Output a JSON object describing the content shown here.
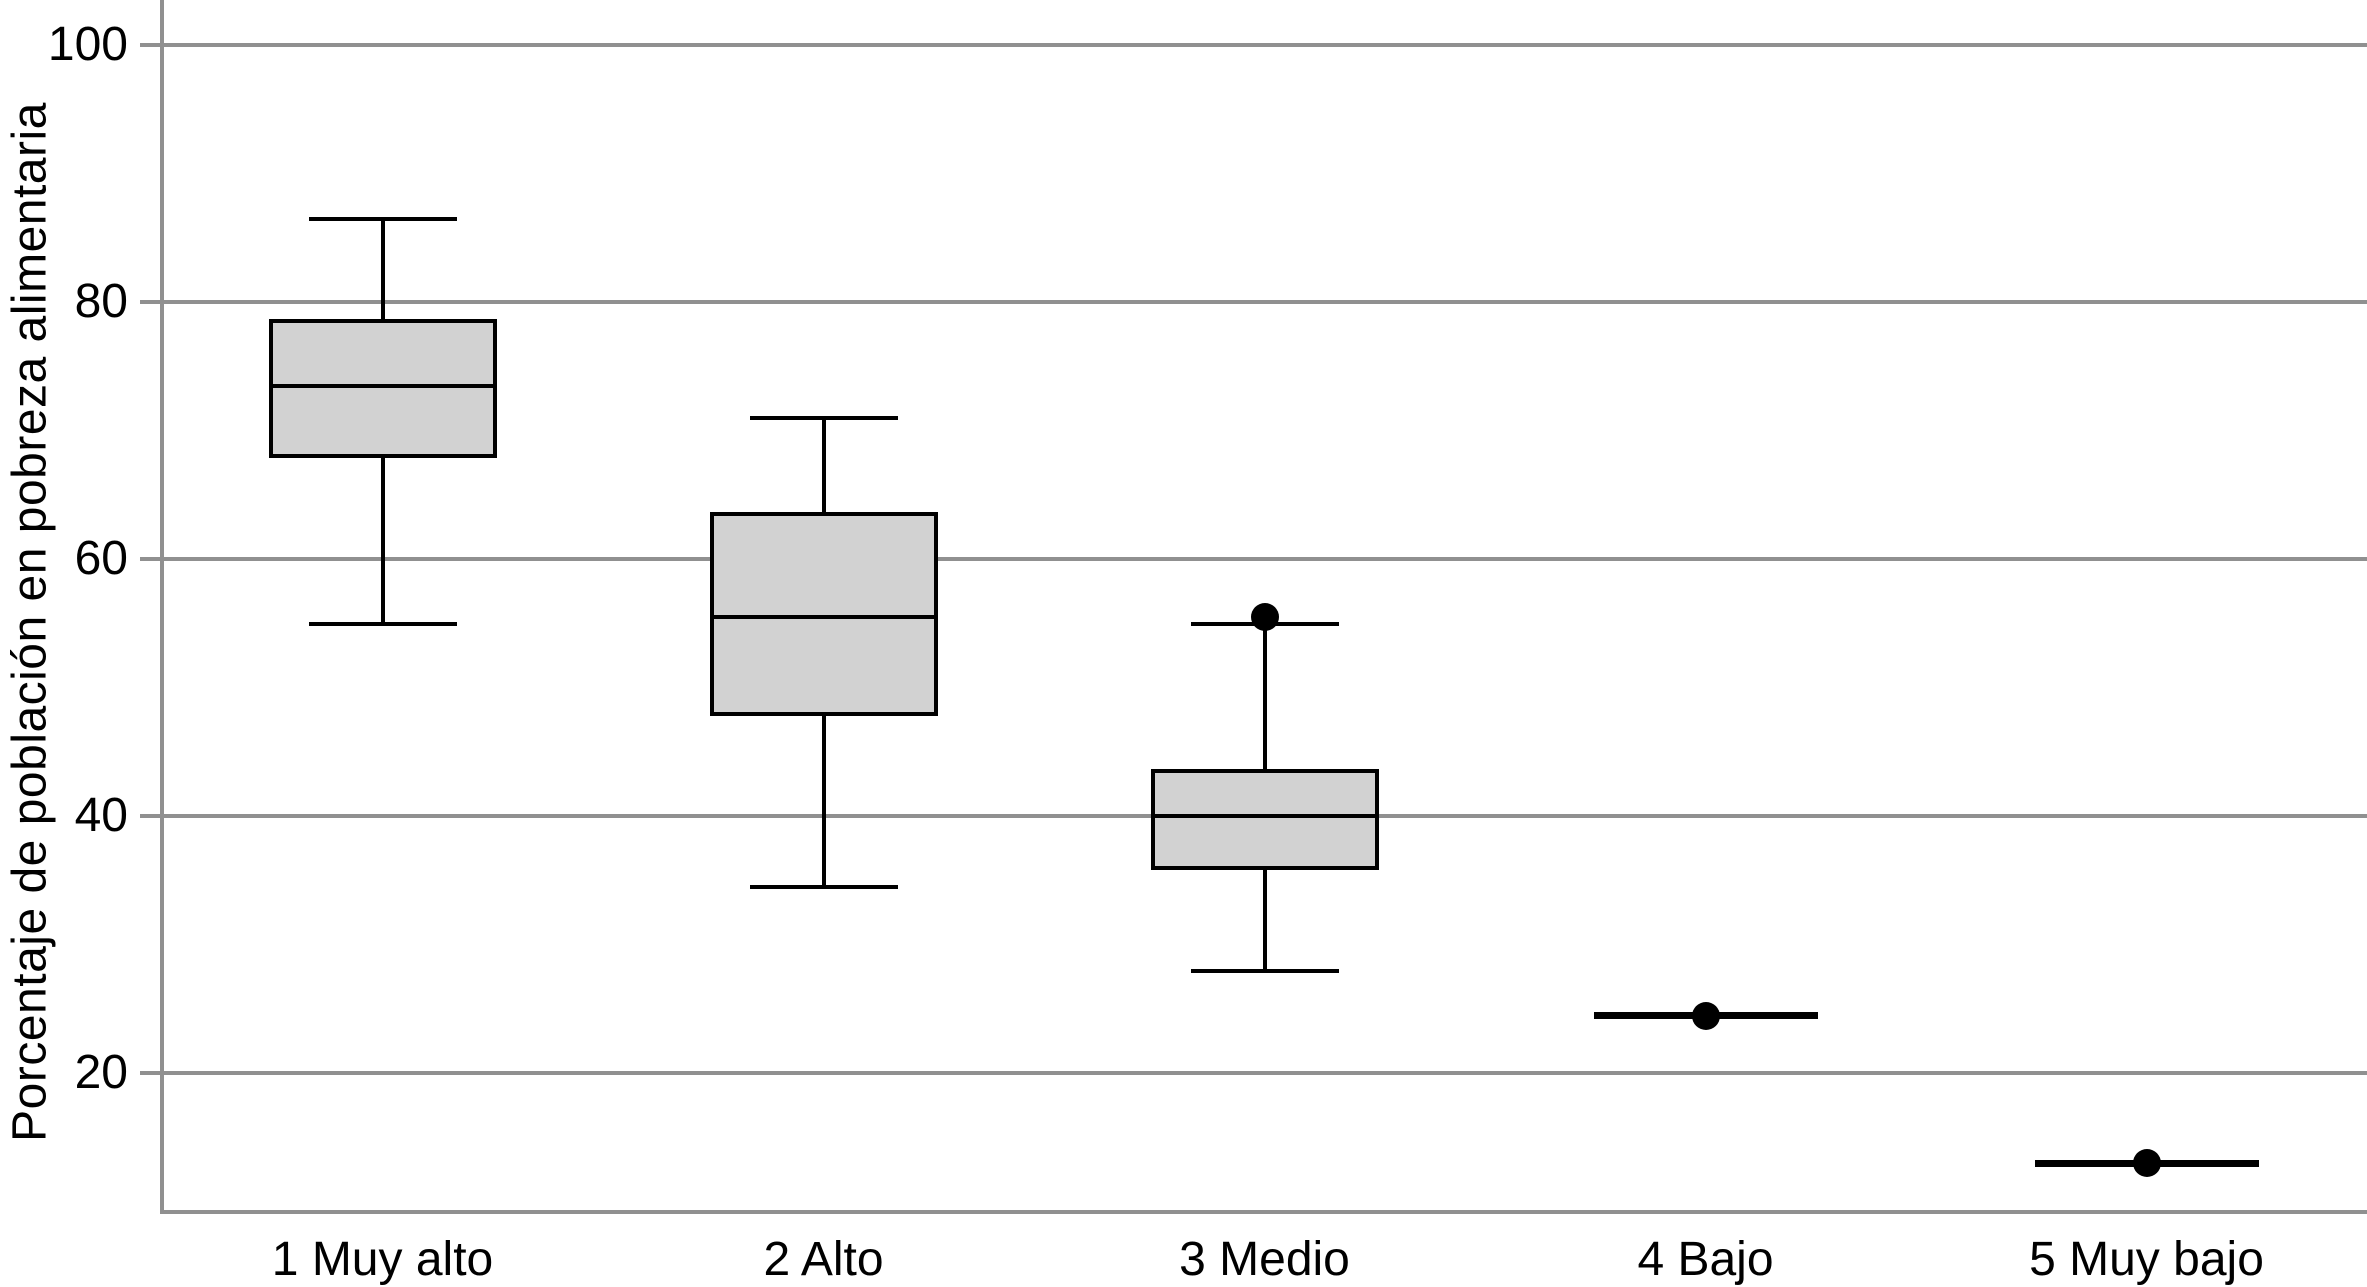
{
  "chart_data": {
    "type": "boxplot",
    "title": "",
    "xlabel": "",
    "ylabel": "Porcentaje de población en pobreza alimentaria",
    "categories": [
      "1 Muy alto",
      "2 Alto",
      "3 Medio",
      "4 Bajo",
      "5 Muy bajo"
    ],
    "yticks": [
      100,
      80,
      60,
      40,
      20
    ],
    "ylim": [
      9,
      103.5
    ],
    "grid": true,
    "legend": false,
    "series": [
      {
        "category": "1 Muy alto",
        "degenerate": false,
        "whisker_low": 55,
        "q1": 68,
        "median": 73.5,
        "q3": 78.5,
        "whisker_high": 86.5,
        "outliers": []
      },
      {
        "category": "2 Alto",
        "degenerate": false,
        "whisker_low": 34.5,
        "q1": 48,
        "median": 55.5,
        "q3": 63.5,
        "whisker_high": 71,
        "outliers": []
      },
      {
        "category": "3 Medio",
        "degenerate": false,
        "whisker_low": 28,
        "q1": 36,
        "median": 40,
        "q3": 43.5,
        "whisker_high": 55,
        "outliers": [
          55.5
        ]
      },
      {
        "category": "4 Bajo",
        "degenerate": true,
        "whisker_low": null,
        "q1": null,
        "median": 24.5,
        "q3": null,
        "whisker_high": null,
        "outliers": [
          24.5
        ]
      },
      {
        "category": "5 Muy bajo",
        "degenerate": true,
        "whisker_low": null,
        "q1": null,
        "median": 13,
        "q3": null,
        "whisker_high": null,
        "outliers": [
          13
        ]
      }
    ],
    "colors": {
      "box_fill": "#d2d2d2",
      "line": "#000000",
      "grid": "#909090",
      "text": "#000000",
      "background": "#ffffff"
    }
  }
}
